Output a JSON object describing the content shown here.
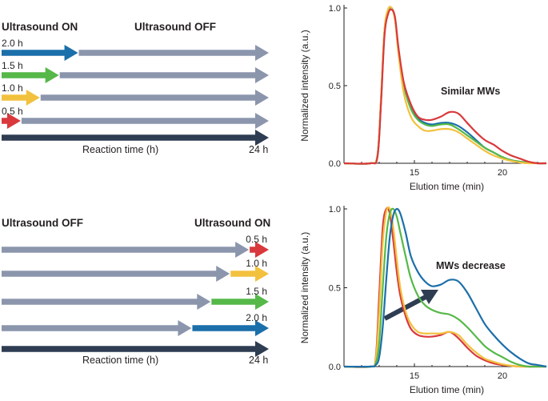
{
  "colors": {
    "dark": "#2e3d52",
    "grey": "#8b96ad",
    "blue": "#1b6faa",
    "green": "#55b848",
    "yellow": "#f2c13e",
    "red": "#d9393c"
  },
  "top_panel": {
    "left_label": "Ultrasound ON",
    "right_label": "Ultrasound OFF",
    "arrows": [
      {
        "duration_label": "2.0 h",
        "hours": 2.0,
        "color": "blue"
      },
      {
        "duration_label": "1.5 h",
        "hours": 1.5,
        "color": "green"
      },
      {
        "duration_label": "1.0 h",
        "hours": 1.0,
        "color": "yellow"
      },
      {
        "duration_label": "0.5 h",
        "hours": 0.5,
        "color": "red"
      }
    ],
    "axis_label": "Reaction time (h)",
    "axis_end": "24 h"
  },
  "bottom_panel": {
    "left_label": "Ultrasound OFF",
    "right_label": "Ultrasound ON",
    "arrows": [
      {
        "duration_label": "0.5 h",
        "hours": 0.5,
        "color": "red"
      },
      {
        "duration_label": "1.0 h",
        "hours": 1.0,
        "color": "yellow"
      },
      {
        "duration_label": "1.5 h",
        "hours": 1.5,
        "color": "green"
      },
      {
        "duration_label": "2.0 h",
        "hours": 2.0,
        "color": "blue"
      }
    ],
    "axis_label": "Reaction time (h)",
    "axis_end": "24 h"
  },
  "chart_data": [
    {
      "type": "line",
      "title": "",
      "annotation": "Similar MWs",
      "xlabel": "Elution time (min)",
      "ylabel": "Normalized intensity (a.u.)",
      "xlim": [
        11,
        22.5
      ],
      "ylim": [
        0,
        1.0
      ],
      "xticks": [
        "15",
        "20"
      ],
      "xtick_values": [
        15,
        20
      ],
      "yticks": [
        "0.0",
        "0.5",
        "1.0"
      ],
      "ytick_values": [
        0,
        0.5,
        1.0
      ],
      "x": [
        11,
        12.5,
        12.9,
        13.1,
        13.3,
        13.5,
        13.7,
        13.9,
        14.1,
        14.4,
        14.8,
        15.2,
        15.6,
        16.0,
        16.5,
        17.0,
        17.5,
        18.0,
        18.5,
        19.0,
        19.5,
        20.0,
        20.5,
        21.0,
        21.5,
        22.0,
        22.5
      ],
      "series": [
        {
          "name": "2.0 h",
          "color": "blue",
          "values": [
            0,
            0,
            0.05,
            0.4,
            0.85,
            0.98,
            1.0,
            0.93,
            0.72,
            0.5,
            0.36,
            0.29,
            0.26,
            0.25,
            0.26,
            0.26,
            0.24,
            0.2,
            0.15,
            0.1,
            0.07,
            0.04,
            0.02,
            0.01,
            0.005,
            0,
            0
          ]
        },
        {
          "name": "1.5 h",
          "color": "green",
          "values": [
            0,
            0,
            0.05,
            0.4,
            0.85,
            0.98,
            1.0,
            0.93,
            0.72,
            0.5,
            0.35,
            0.28,
            0.25,
            0.24,
            0.25,
            0.25,
            0.22,
            0.18,
            0.14,
            0.1,
            0.07,
            0.04,
            0.02,
            0.01,
            0.005,
            0,
            0
          ]
        },
        {
          "name": "1.0 h",
          "color": "yellow",
          "values": [
            0,
            0,
            0.05,
            0.42,
            0.86,
            0.99,
            1.0,
            0.92,
            0.7,
            0.45,
            0.3,
            0.24,
            0.21,
            0.21,
            0.22,
            0.22,
            0.2,
            0.16,
            0.12,
            0.08,
            0.05,
            0.03,
            0.015,
            0.005,
            0,
            0,
            0
          ]
        },
        {
          "name": "0.5 h",
          "color": "red",
          "values": [
            0,
            0,
            0.04,
            0.38,
            0.82,
            0.96,
            0.99,
            0.94,
            0.74,
            0.52,
            0.38,
            0.3,
            0.28,
            0.28,
            0.3,
            0.33,
            0.32,
            0.26,
            0.2,
            0.15,
            0.12,
            0.08,
            0.05,
            0.03,
            0.01,
            0,
            0
          ]
        }
      ]
    },
    {
      "type": "line",
      "title": "",
      "annotation": "MWs decrease",
      "xlabel": "Elution time (min)",
      "ylabel": "Normalized intensity (a.u.)",
      "xlim": [
        11,
        22.5
      ],
      "ylim": [
        0,
        1.0
      ],
      "xticks": [
        "15",
        "20"
      ],
      "xtick_values": [
        15,
        20
      ],
      "yticks": [
        "0.0",
        "0.5",
        "1.0"
      ],
      "ytick_values": [
        0,
        0.5,
        1.0
      ],
      "x": [
        11,
        12.5,
        12.8,
        13.0,
        13.2,
        13.4,
        13.6,
        13.8,
        14.0,
        14.2,
        14.5,
        14.8,
        15.2,
        15.6,
        16.0,
        16.5,
        17.0,
        17.5,
        18.0,
        18.5,
        19.0,
        19.5,
        20.0,
        20.5,
        21.0,
        21.5,
        22.0,
        22.5
      ],
      "series": [
        {
          "name": "0.5 h",
          "color": "red",
          "values": [
            0,
            0,
            0.05,
            0.45,
            0.88,
            1.0,
            0.97,
            0.8,
            0.6,
            0.45,
            0.32,
            0.24,
            0.2,
            0.19,
            0.19,
            0.2,
            0.22,
            0.18,
            0.12,
            0.07,
            0.04,
            0.02,
            0.01,
            0.005,
            0,
            0,
            0,
            0
          ]
        },
        {
          "name": "1.0 h",
          "color": "yellow",
          "values": [
            0,
            0,
            0.04,
            0.35,
            0.78,
            0.98,
            1.0,
            0.88,
            0.68,
            0.5,
            0.35,
            0.27,
            0.22,
            0.21,
            0.21,
            0.21,
            0.22,
            0.2,
            0.14,
            0.09,
            0.05,
            0.03,
            0.015,
            0.005,
            0,
            0,
            0,
            0
          ]
        },
        {
          "name": "1.5 h",
          "color": "green",
          "values": [
            0,
            0,
            0.02,
            0.15,
            0.5,
            0.82,
            0.97,
            1.0,
            0.95,
            0.85,
            0.7,
            0.56,
            0.45,
            0.39,
            0.36,
            0.34,
            0.33,
            0.3,
            0.25,
            0.19,
            0.13,
            0.09,
            0.06,
            0.03,
            0.01,
            0,
            0,
            0
          ]
        },
        {
          "name": "2.0 h",
          "color": "blue",
          "values": [
            0,
            0,
            0.01,
            0.06,
            0.25,
            0.55,
            0.82,
            0.96,
            1.0,
            0.97,
            0.85,
            0.7,
            0.6,
            0.54,
            0.51,
            0.52,
            0.55,
            0.54,
            0.47,
            0.37,
            0.27,
            0.2,
            0.14,
            0.09,
            0.05,
            0.02,
            0.01,
            0
          ]
        }
      ]
    }
  ]
}
